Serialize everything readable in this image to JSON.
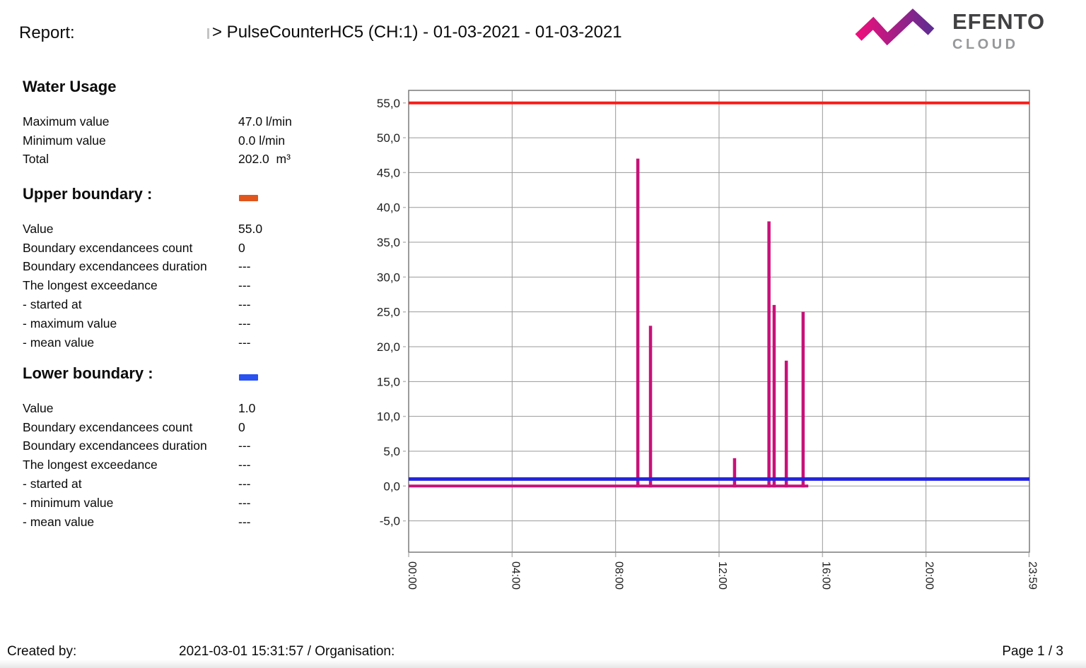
{
  "header": {
    "report_label": "Report:",
    "title": "> PulseCounterHC5 (CH:1) - 01-03-2021 - 01-03-2021",
    "logo": {
      "brand": "EFENTO",
      "sub": "CLOUD",
      "gradient_start": "#ec0f7b",
      "gradient_end": "#5f2d91"
    }
  },
  "summary": {
    "title": "Water Usage",
    "rows": [
      {
        "label": "Maximum value",
        "value": "47.0 l/min"
      },
      {
        "label": "Minimum value",
        "value": "0.0 l/min"
      },
      {
        "label": "Total",
        "value": "202.0  m³"
      }
    ]
  },
  "upper_boundary": {
    "title": "Upper boundary :",
    "swatch_color": "#e0561c",
    "rows": [
      {
        "label": "Value",
        "value": "55.0"
      },
      {
        "label": "Boundary excendancees count",
        "value": "0"
      },
      {
        "label": "Boundary excendancees duration",
        "value": "---"
      },
      {
        "label": "The longest exceedance",
        "value": "---"
      },
      {
        "label": "- started at",
        "value": "---"
      },
      {
        "label": "- maximum value",
        "value": "---"
      },
      {
        "label": "- mean value",
        "value": "---"
      }
    ]
  },
  "lower_boundary": {
    "title": "Lower boundary :",
    "swatch_color": "#2a52f0",
    "rows": [
      {
        "label": "Value",
        "value": "1.0"
      },
      {
        "label": "Boundary excendancees count",
        "value": "0"
      },
      {
        "label": "Boundary excendancees duration",
        "value": "---"
      },
      {
        "label": "The longest exceedance",
        "value": "---"
      },
      {
        "label": "- started at",
        "value": "---"
      },
      {
        "label": "- minimum value",
        "value": "---"
      },
      {
        "label": "- mean value",
        "value": "---"
      }
    ]
  },
  "footer": {
    "created_by_label": "Created by:",
    "timestamp_org": "2021-03-01 15:31:57 / Organisation:",
    "page": "Page 1 / 3"
  },
  "chart_data": {
    "type": "line",
    "title": "",
    "xlabel": "",
    "ylabel": "",
    "description": "Water usage (l/min) over 24 hours shown as impulse spikes on a zero baseline, with upper and lower boundary threshold lines",
    "grid": true,
    "legend": false,
    "x_axis": {
      "ticks": [
        "00:00",
        "04:00",
        "08:00",
        "12:00",
        "16:00",
        "20:00",
        "23:59"
      ],
      "tick_hours": [
        0,
        4,
        8,
        12,
        16,
        20,
        23.983
      ]
    },
    "y_axis": {
      "tick_labels": [
        "55,0",
        "50,0",
        "45,0",
        "40,0",
        "35,0",
        "30,0",
        "25,0",
        "20,0",
        "15,0",
        "10,0",
        "5,0",
        "0,0",
        "-5,0"
      ],
      "tick_values": [
        55,
        50,
        45,
        40,
        35,
        30,
        25,
        20,
        15,
        10,
        5,
        0,
        -5
      ],
      "range": [
        -9.5,
        56.8
      ]
    },
    "upper_boundary_line": {
      "value": 55.0,
      "color": "#f81d18"
    },
    "lower_boundary_line": {
      "value": 1.0,
      "color": "#2424dd"
    },
    "series_color": "#c81179",
    "baseline": {
      "value": 0.0,
      "start_hour": 0,
      "end_hour": 15.45
    },
    "spikes": [
      {
        "time": "08:52",
        "hour": 8.86,
        "value": 47.0
      },
      {
        "time": "09:21",
        "hour": 9.35,
        "value": 23.0
      },
      {
        "time": "12:36",
        "hour": 12.6,
        "value": 4.0
      },
      {
        "time": "13:56",
        "hour": 13.93,
        "value": 38.0
      },
      {
        "time": "14:08",
        "hour": 14.13,
        "value": 26.0
      },
      {
        "time": "14:36",
        "hour": 14.6,
        "value": 18.0
      },
      {
        "time": "15:15",
        "hour": 15.25,
        "value": 25.0
      }
    ]
  }
}
